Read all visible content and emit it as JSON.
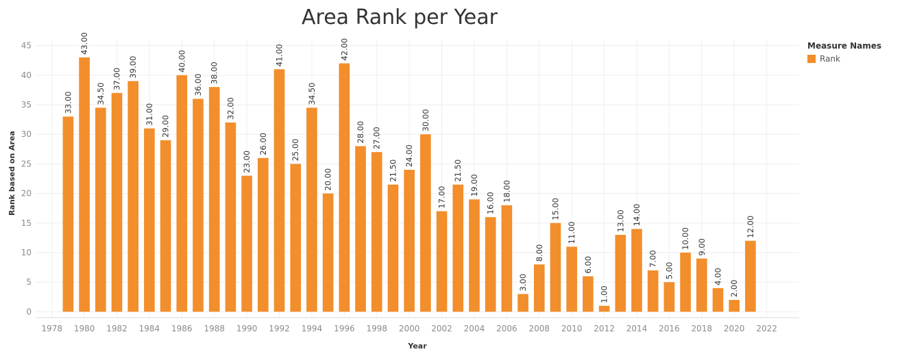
{
  "chart_data": {
    "type": "bar",
    "title": "Area Rank per Year",
    "xlabel": "Year",
    "ylabel": "Rank based on Area",
    "xlim": [
      1977,
      2024
    ],
    "ylim": [
      -1,
      46
    ],
    "xticks": [
      1978,
      1980,
      1982,
      1984,
      1986,
      1988,
      1990,
      1992,
      1994,
      1996,
      1998,
      2000,
      2002,
      2004,
      2006,
      2008,
      2010,
      2012,
      2014,
      2016,
      2018,
      2020,
      2022
    ],
    "yticks": [
      0,
      5,
      10,
      15,
      20,
      25,
      30,
      35,
      40,
      45
    ],
    "grid": true,
    "legend_position": "right",
    "bar_color": "#f28e2b",
    "legend": {
      "title": "Measure Names",
      "items": [
        "Rank"
      ]
    },
    "series": [
      {
        "name": "Rank",
        "x": [
          1979,
          1980,
          1981,
          1982,
          1983,
          1984,
          1985,
          1986,
          1987,
          1988,
          1989,
          1990,
          1991,
          1992,
          1993,
          1994,
          1995,
          1996,
          1997,
          1998,
          1999,
          2000,
          2001,
          2002,
          2003,
          2004,
          2005,
          2006,
          2007,
          2008,
          2009,
          2010,
          2011,
          2012,
          2013,
          2014,
          2015,
          2016,
          2017,
          2018,
          2019,
          2020,
          2021
        ],
        "values": [
          33,
          43,
          34.5,
          37,
          39,
          31,
          29,
          40,
          36,
          38,
          32,
          23,
          26,
          41,
          25,
          34.5,
          20,
          42,
          28,
          27,
          21.5,
          24,
          30,
          17,
          21.5,
          19,
          16,
          18,
          3,
          8,
          15,
          11,
          6,
          1,
          13,
          14,
          7,
          5,
          10,
          9,
          4,
          2,
          12
        ],
        "labels": [
          "33.00",
          "43.00",
          "34.50",
          "37.00",
          "39.00",
          "31.00",
          "29.00",
          "40.00",
          "36.00",
          "38.00",
          "32.00",
          "23.00",
          "26.00",
          "41.00",
          "25.00",
          "34.50",
          "20.00",
          "42.00",
          "28.00",
          "27.00",
          "21.50",
          "24.00",
          "30.00",
          "17.00",
          "21.50",
          "19.00",
          "16.00",
          "18.00",
          "3.00",
          "8.00",
          "15.00",
          "11.00",
          "6.00",
          "1.00",
          "13.00",
          "14.00",
          "7.00",
          "5.00",
          "10.00",
          "9.00",
          "4.00",
          "2.00",
          "12.00"
        ]
      }
    ]
  }
}
